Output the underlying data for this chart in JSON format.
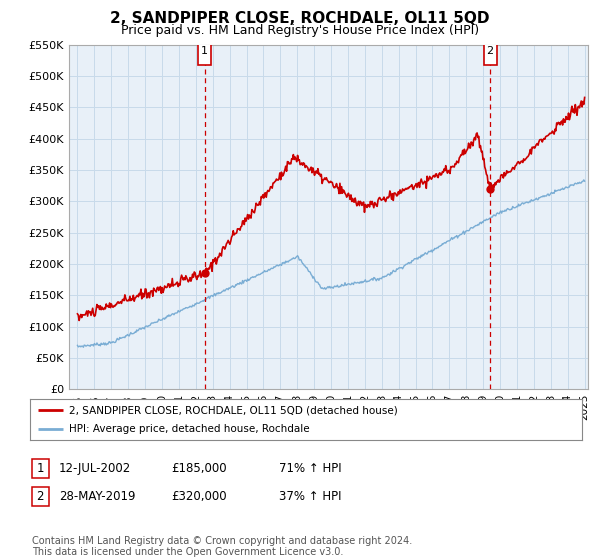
{
  "title": "2, SANDPIPER CLOSE, ROCHDALE, OL11 5QD",
  "subtitle": "Price paid vs. HM Land Registry's House Price Index (HPI)",
  "title_fontsize": 11,
  "subtitle_fontsize": 9,
  "xlim": [
    1994.5,
    2025.2
  ],
  "ylim": [
    0,
    550000
  ],
  "yticks": [
    0,
    50000,
    100000,
    150000,
    200000,
    250000,
    300000,
    350000,
    400000,
    450000,
    500000,
    550000
  ],
  "ytick_labels": [
    "£0",
    "£50K",
    "£100K",
    "£150K",
    "£200K",
    "£250K",
    "£300K",
    "£350K",
    "£400K",
    "£450K",
    "£500K",
    "£550K"
  ],
  "xticks": [
    1995,
    1996,
    1997,
    1998,
    1999,
    2000,
    2001,
    2002,
    2003,
    2004,
    2005,
    2006,
    2007,
    2008,
    2009,
    2010,
    2011,
    2012,
    2013,
    2014,
    2015,
    2016,
    2017,
    2018,
    2019,
    2020,
    2021,
    2022,
    2023,
    2024,
    2025
  ],
  "red_line_color": "#cc0000",
  "blue_line_color": "#7aadd4",
  "grid_color": "#c8daea",
  "bg_color": "#ddeaf4",
  "plot_bg": "#e8f0f8",
  "sale1_x": 2002.53,
  "sale1_y": 185000,
  "sale2_x": 2019.41,
  "sale2_y": 320000,
  "legend_label_red": "2, SANDPIPER CLOSE, ROCHDALE, OL11 5QD (detached house)",
  "legend_label_blue": "HPI: Average price, detached house, Rochdale",
  "table_row1": [
    "1",
    "12-JUL-2002",
    "£185,000",
    "71% ↑ HPI"
  ],
  "table_row2": [
    "2",
    "28-MAY-2019",
    "£320,000",
    "37% ↑ HPI"
  ],
  "footnote": "Contains HM Land Registry data © Crown copyright and database right 2024.\nThis data is licensed under the Open Government Licence v3.0.",
  "footnote_fontsize": 7
}
